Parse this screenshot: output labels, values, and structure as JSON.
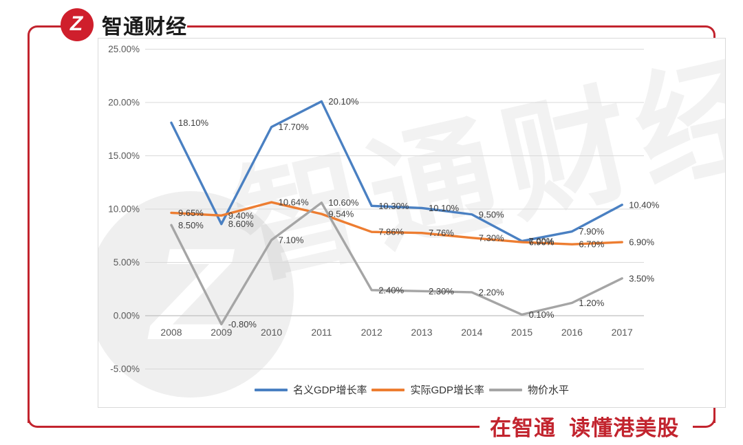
{
  "header": {
    "brand": "智通财经",
    "logo_glyph": "Z"
  },
  "footer": {
    "slogan": "在智通  读懂港美股"
  },
  "watermark": {
    "text": "智通财经",
    "logo_glyph": "Z"
  },
  "colors": {
    "brand_red": "#C2242E",
    "logo_red": "#CF1F2C",
    "brand_text": "#1A1A1A",
    "grid": "#D9D9D9",
    "axis_line": "#BFBFBF",
    "tick_text": "#595959",
    "data_label_text": "#3D3D3D"
  },
  "chart_data": {
    "type": "line",
    "title": "",
    "xlabel": "",
    "ylabel": "",
    "grid": true,
    "legend_position": "bottom",
    "ylim": [
      -5,
      25
    ],
    "y_ticks": [
      {
        "label": "25.00%",
        "value": 25
      },
      {
        "label": "20.00%",
        "value": 20
      },
      {
        "label": "15.00%",
        "value": 15
      },
      {
        "label": "10.00%",
        "value": 10
      },
      {
        "label": "5.00%",
        "value": 5
      },
      {
        "label": "0.00%",
        "value": 0
      },
      {
        "label": "-5.00%",
        "value": -5
      }
    ],
    "categories": [
      "2008",
      "2009",
      "2010",
      "2011",
      "2012",
      "2013",
      "2014",
      "2015",
      "2016",
      "2017"
    ],
    "series": [
      {
        "name": "名义GDP增长率",
        "color": "#4A80C2",
        "values": [
          18.1,
          8.6,
          17.7,
          20.1,
          10.3,
          10.1,
          9.5,
          7.0,
          7.9,
          10.4
        ],
        "labels": [
          "18.10%",
          "8.60%",
          "17.70%",
          "20.10%",
          "10.30%",
          "10.10%",
          "9.50%",
          "7.00%",
          "7.90%",
          "10.40%"
        ]
      },
      {
        "name": "实际GDP增长率",
        "color": "#ED7D31",
        "values": [
          9.65,
          9.4,
          10.64,
          9.54,
          7.86,
          7.76,
          7.3,
          6.9,
          6.7,
          6.9
        ],
        "labels": [
          "9.65%",
          "9.40%",
          "10.64%",
          "9.54%",
          "7.86%",
          "7.76%",
          "7.30%",
          "6.90%",
          "6.70%",
          "6.90%"
        ]
      },
      {
        "name": "物价水平",
        "color": "#A5A5A5",
        "values": [
          8.5,
          -0.8,
          7.1,
          10.6,
          2.4,
          2.3,
          2.2,
          0.1,
          1.2,
          3.5
        ],
        "labels": [
          "8.50%",
          "-0.80%",
          "7.10%",
          "10.60%",
          "2.40%",
          "2.30%",
          "2.20%",
          "0.10%",
          "1.20%",
          "3.50%"
        ]
      }
    ]
  }
}
